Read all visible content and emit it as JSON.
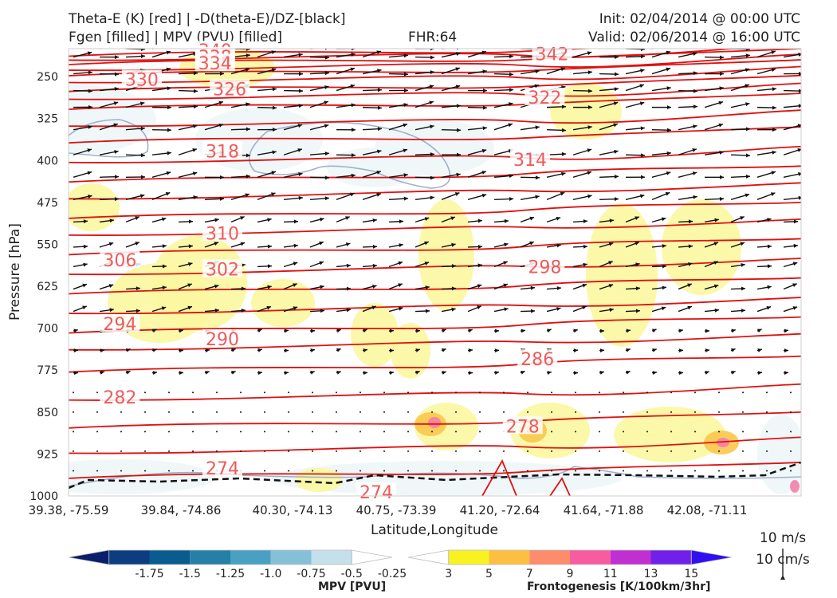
{
  "header": {
    "line1_left": "Theta-E (K) [red] | -D(theta-E)/DZ-[black]",
    "line2_left": "Fgen [filled] | MPV (PVU) [filled]",
    "fhr": "FHR:64",
    "init": "Init: 02/04/2014 @ 00:00 UTC",
    "valid": "Valid: 02/06/2014 @ 16:00 UTC"
  },
  "chart_data": {
    "type": "cross-section",
    "xlabel": "Latitude,Longitude",
    "ylabel": "Pressure [hPa]",
    "ylim": [
      1000,
      200
    ],
    "x_tick_labels": [
      "39.38, -75.59",
      "39.84, -74.86",
      "40.30, -74.13",
      "40.75, -73.39",
      "41.20, -72.64",
      "41.64, -71.88",
      "42.08, -71.11"
    ],
    "y_ticks": [
      250,
      325,
      400,
      475,
      550,
      625,
      700,
      775,
      850,
      925,
      1000
    ],
    "theta_e_contours": [
      {
        "label": "340",
        "at": [
          0.2,
          203
        ]
      },
      {
        "label": "338",
        "at": [
          0.2,
          214
        ]
      },
      {
        "label": "334",
        "at": [
          0.2,
          226
        ]
      },
      {
        "label": "342",
        "at": [
          0.66,
          209
        ]
      },
      {
        "label": "330",
        "at": [
          0.1,
          255
        ]
      },
      {
        "label": "326",
        "at": [
          0.22,
          272
        ]
      },
      {
        "label": "322",
        "at": [
          0.65,
          287
        ]
      },
      {
        "label": "318",
        "at": [
          0.21,
          383
        ]
      },
      {
        "label": "314",
        "at": [
          0.63,
          398
        ]
      },
      {
        "label": "310",
        "at": [
          0.21,
          530
        ]
      },
      {
        "label": "306",
        "at": [
          0.07,
          578
        ]
      },
      {
        "label": "302",
        "at": [
          0.21,
          594
        ]
      },
      {
        "label": "298",
        "at": [
          0.65,
          590
        ]
      },
      {
        "label": "294",
        "at": [
          0.07,
          692
        ]
      },
      {
        "label": "290",
        "at": [
          0.21,
          719
        ]
      },
      {
        "label": "286",
        "at": [
          0.64,
          755
        ]
      },
      {
        "label": "282",
        "at": [
          0.07,
          823
        ]
      },
      {
        "label": "278",
        "at": [
          0.62,
          875
        ]
      },
      {
        "label": "274",
        "at": [
          0.21,
          950
        ]
      },
      {
        "label": "274",
        "at": [
          0.42,
          993
        ]
      }
    ],
    "wind_reference": {
      "speed_label": "10 m/s",
      "vertical_label": "10 cm/s"
    },
    "colorbars": [
      {
        "name": "MPV [PVU]",
        "ticks": [
          "-1.75",
          "-1.5",
          "-1.25",
          "-1.0",
          "-0.75",
          "-0.5",
          "-0.25"
        ],
        "colors": [
          "#08206b",
          "#0b3d80",
          "#0a5c8e",
          "#2480a6",
          "#4aa0c2",
          "#86c0d6",
          "#c4e0ea",
          "#ffffff"
        ]
      },
      {
        "name": "Frontogenesis [K/100km/3hr]",
        "ticks": [
          "3",
          "5",
          "7",
          "9",
          "11",
          "13",
          "15"
        ],
        "colors": [
          "#ffffff",
          "#f8f320",
          "#fcc040",
          "#fc8c6c",
          "#f85ca0",
          "#c030d0",
          "#7020e8",
          "#3010f0"
        ]
      }
    ]
  }
}
